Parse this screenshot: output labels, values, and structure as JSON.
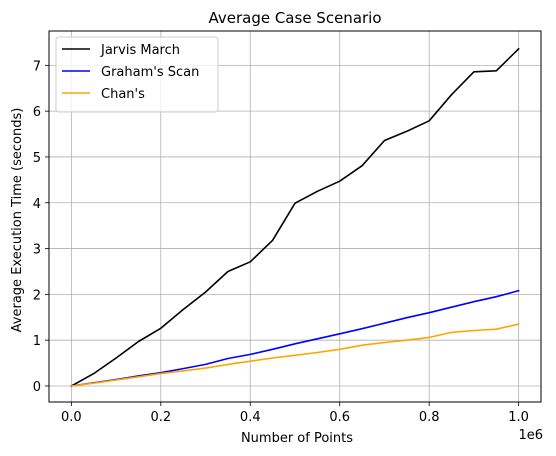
{
  "chart_data": {
    "type": "line",
    "title": "Average Case Scenario",
    "xlabel": "Number of Points",
    "ylabel": "Average Execution Time (seconds)",
    "x_offset_label": "1e6",
    "xlim": [
      -0.05,
      1.05
    ],
    "ylim": [
      -0.35,
      7.75
    ],
    "x_ticks": [
      0.0,
      0.2,
      0.4,
      0.6,
      0.8,
      1.0
    ],
    "x_tick_labels": [
      "0.0",
      "0.2",
      "0.4",
      "0.6",
      "0.8",
      "1.0"
    ],
    "y_ticks": [
      0,
      1,
      2,
      3,
      4,
      5,
      6,
      7
    ],
    "y_tick_labels": [
      "0",
      "1",
      "2",
      "3",
      "4",
      "5",
      "6",
      "7"
    ],
    "grid": true,
    "legend_position": "top-left",
    "x": [
      0.0,
      0.05,
      0.1,
      0.15,
      0.2,
      0.25,
      0.3,
      0.35,
      0.4,
      0.45,
      0.5,
      0.55,
      0.6,
      0.65,
      0.7,
      0.75,
      0.8,
      0.85,
      0.9,
      0.95,
      1.0
    ],
    "series": [
      {
        "name": "Jarvis March",
        "color": "#000000",
        "values": [
          0.0,
          0.27,
          0.61,
          0.97,
          1.26,
          1.67,
          2.05,
          2.5,
          2.71,
          3.18,
          3.99,
          4.25,
          4.47,
          4.81,
          5.36,
          5.56,
          5.79,
          6.36,
          6.86,
          6.88,
          7.36
        ]
      },
      {
        "name": "Graham's Scan",
        "color": "#0000ff",
        "values": [
          0.0,
          0.07,
          0.14,
          0.22,
          0.29,
          0.38,
          0.47,
          0.6,
          0.69,
          0.8,
          0.92,
          1.03,
          1.14,
          1.25,
          1.37,
          1.49,
          1.6,
          1.72,
          1.84,
          1.95,
          2.08
        ]
      },
      {
        "name": "Chan's",
        "color": "#ffa500",
        "values": [
          0.0,
          0.06,
          0.13,
          0.2,
          0.27,
          0.33,
          0.39,
          0.47,
          0.54,
          0.61,
          0.67,
          0.73,
          0.8,
          0.89,
          0.95,
          1.0,
          1.06,
          1.17,
          1.21,
          1.24,
          1.35
        ]
      }
    ]
  }
}
